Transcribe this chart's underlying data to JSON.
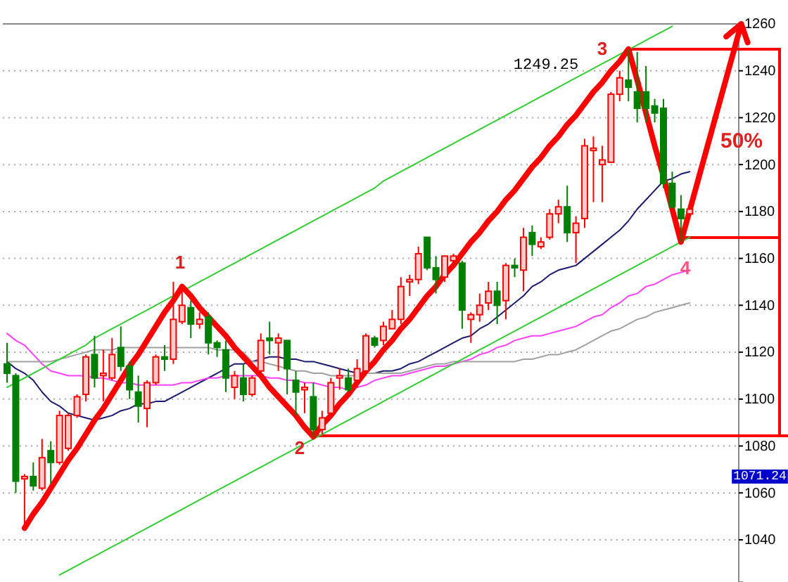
{
  "chart_data": {
    "type": "candlestick",
    "categories": [
      null,
      null,
      null,
      null,
      null,
      null,
      null,
      null,
      null,
      null,
      null,
      null,
      null,
      null,
      null,
      null,
      null,
      null,
      null,
      null,
      null,
      null,
      null,
      null,
      null,
      null,
      null,
      null,
      null,
      null,
      null,
      null,
      null,
      null,
      null,
      null,
      null,
      null,
      null,
      null,
      null,
      null,
      null,
      null,
      null,
      null,
      null,
      null,
      null,
      null,
      null,
      null,
      null,
      null,
      null,
      null,
      null,
      null,
      null,
      null,
      null,
      null,
      null,
      null,
      null,
      null,
      null,
      null,
      null,
      null,
      null,
      null,
      null,
      null,
      null,
      null,
      null,
      null,
      null
    ],
    "ohlc": [
      [
        1115,
        1124,
        1107,
        1111
      ],
      [
        1110,
        1111,
        1060,
        1065
      ],
      [
        1066,
        1068,
        1045,
        1067
      ],
      [
        1067,
        1073,
        1061,
        1063
      ],
      [
        1062,
        1083,
        1061,
        1075
      ],
      [
        1078,
        1082,
        1064,
        1073
      ],
      [
        1073,
        1095,
        1072,
        1093
      ],
      [
        1079,
        1094,
        1078,
        1093
      ],
      [
        1093,
        1102,
        1092,
        1101
      ],
      [
        1102,
        1119,
        1099,
        1118
      ],
      [
        1119,
        1127,
        1105,
        1109
      ],
      [
        1110,
        1121,
        1099,
        1111
      ],
      [
        1109,
        1126,
        1108,
        1119
      ],
      [
        1122,
        1131,
        1112,
        1114
      ],
      [
        1114,
        1116,
        1100,
        1104
      ],
      [
        1103,
        1110,
        1090,
        1097
      ],
      [
        1096,
        1108,
        1088,
        1107
      ],
      [
        1107,
        1119,
        1106,
        1118
      ],
      [
        1118,
        1123,
        1112,
        1117
      ],
      [
        1117,
        1150,
        1115,
        1134
      ],
      [
        1133,
        1148,
        1132,
        1140
      ],
      [
        1139,
        1142,
        1126,
        1132
      ],
      [
        1132,
        1137,
        1130,
        1134
      ],
      [
        1135,
        1137,
        1119,
        1124
      ],
      [
        1124,
        1125,
        1118,
        1122
      ],
      [
        1121,
        1125,
        1103,
        1109
      ],
      [
        1105,
        1112,
        1100,
        1110
      ],
      [
        1109,
        1115,
        1099,
        1102
      ],
      [
        1102,
        1110,
        1101,
        1109
      ],
      [
        1112,
        1128,
        1111,
        1125
      ],
      [
        1126,
        1133,
        1119,
        1125
      ],
      [
        1124,
        1128,
        1112,
        1126
      ],
      [
        1125,
        1125,
        1102,
        1113
      ],
      [
        1108,
        1112,
        1093,
        1103
      ],
      [
        1104,
        1107,
        1094,
        1105
      ],
      [
        1101,
        1107,
        1084,
        1087
      ],
      [
        1087,
        1095,
        1085,
        1092
      ],
      [
        1094,
        1109,
        1093,
        1107
      ],
      [
        1109,
        1113,
        1104,
        1110
      ],
      [
        1109,
        1113,
        1103,
        1104
      ],
      [
        1108,
        1117,
        1105,
        1113
      ],
      [
        1112,
        1128,
        1110,
        1127
      ],
      [
        1126,
        1127,
        1122,
        1123
      ],
      [
        1125,
        1133,
        1123,
        1131
      ],
      [
        1130,
        1138,
        1130,
        1134
      ],
      [
        1134,
        1152,
        1132,
        1148
      ],
      [
        1150,
        1153,
        1144,
        1151
      ],
      [
        1151,
        1165,
        1149,
        1162
      ],
      [
        1169,
        1169,
        1155,
        1156
      ],
      [
        1156,
        1161,
        1145,
        1151
      ],
      [
        1152,
        1161,
        1150,
        1161
      ],
      [
        1159,
        1162,
        1158,
        1161
      ],
      [
        1158,
        1159,
        1130,
        1138
      ],
      [
        1134,
        1137,
        1124,
        1136
      ],
      [
        1136,
        1145,
        1133,
        1140
      ],
      [
        1141,
        1150,
        1138,
        1146
      ],
      [
        1146,
        1150,
        1132,
        1140
      ],
      [
        1142,
        1158,
        1134,
        1157
      ],
      [
        1157,
        1160,
        1152,
        1156
      ],
      [
        1155,
        1173,
        1146,
        1169
      ],
      [
        1171,
        1174,
        1161,
        1166
      ],
      [
        1165,
        1169,
        1164,
        1167
      ],
      [
        1169,
        1181,
        1168,
        1179
      ],
      [
        1179,
        1185,
        1175,
        1182
      ],
      [
        1182,
        1191,
        1167,
        1171
      ],
      [
        1171,
        1178,
        1158,
        1175
      ],
      [
        1177,
        1211,
        1173,
        1208
      ],
      [
        1206,
        1212,
        1184,
        1207
      ],
      [
        1200,
        1208,
        1184,
        1202
      ],
      [
        1201,
        1231,
        1201,
        1230
      ],
      [
        1230,
        1240,
        1227,
        1237
      ],
      [
        1236,
        1249.25,
        1227,
        1233
      ],
      [
        1231,
        1248,
        1218,
        1224
      ],
      [
        1231,
        1242,
        1218,
        1224
      ],
      [
        1225,
        1228,
        1218,
        1222
      ],
      [
        1224,
        1228,
        1190,
        1192
      ],
      [
        1192,
        1197,
        1181,
        1182
      ],
      [
        1181,
        1187,
        1167,
        1177
      ],
      [
        1179,
        1182,
        1178,
        1181
      ]
    ],
    "series": [
      {
        "type": "line",
        "color": "#1a1a6e",
        "values": [
          1116,
          1113,
          1111,
          1108,
          1103,
          1099,
          1097,
          1094,
          1093,
          1092,
          1091,
          1092,
          1093,
          1095,
          1096,
          1098,
          1098,
          1099,
          1099,
          1101,
          1103,
          1105,
          1107,
          1109,
          1111,
          1113,
          1115,
          1115,
          1116,
          1117,
          1118,
          1118,
          1117,
          1117,
          1116,
          1116,
          1115,
          1114,
          1113,
          1112,
          1111,
          1111,
          1111,
          1112,
          1112,
          1113,
          1115,
          1116,
          1118,
          1120,
          1122,
          1124,
          1126,
          1127,
          1130,
          1132,
          1135,
          1138,
          1141,
          1144,
          1148,
          1150,
          1153,
          1155,
          1156,
          1157,
          1160,
          1163,
          1166,
          1169,
          1172,
          1176,
          1181,
          1185,
          1189,
          1193,
          1194,
          1196,
          1197
        ]
      },
      {
        "type": "line",
        "color": "#ff40ff",
        "values": [
          1128,
          1125,
          1123,
          1119,
          1115,
          1112,
          1111,
          1110,
          1110,
          1110,
          1109,
          1109,
          1108,
          1107,
          1107,
          1106,
          1106,
          1106,
          1106,
          1106,
          1107,
          1107,
          1108,
          1109,
          1109,
          1110,
          1110,
          1110,
          1110,
          1110,
          1109,
          1109,
          1108,
          1108,
          1107,
          1107,
          1106,
          1105,
          1105,
          1104,
          1105,
          1106,
          1108,
          1109,
          1110,
          1110,
          1111,
          1112,
          1113,
          1114,
          1114,
          1115,
          1116,
          1117,
          1119,
          1120,
          1122,
          1123,
          1125,
          1126,
          1127,
          1127,
          1128,
          1129,
          1130,
          1131,
          1133,
          1135,
          1136,
          1139,
          1141,
          1144,
          1145,
          1148,
          1149,
          1151,
          1153,
          1154,
          1155
        ]
      },
      {
        "type": "line",
        "color": "#a0a0a0",
        "values": [
          1116,
          1116,
          1116,
          1116,
          1116,
          1116,
          1117,
          1118,
          1119,
          1120,
          1121,
          1121,
          1121,
          1122,
          1122,
          1122,
          1122,
          1122,
          1122,
          1122,
          1122,
          1122,
          1122,
          1122,
          1121,
          1121,
          1121,
          1120,
          1116,
          1116,
          1115,
          1114,
          1113,
          1112,
          1112,
          1111,
          1111,
          1110,
          1110,
          1110,
          1110,
          1111,
          1111,
          1111,
          1111,
          1111,
          1112,
          1113,
          1114,
          1115,
          1115,
          1116,
          1116,
          1116,
          1116,
          1116,
          1116,
          1116,
          1116,
          1117,
          1117,
          1118,
          1119,
          1119,
          1120,
          1121,
          1123,
          1125,
          1127,
          1129,
          1130,
          1132,
          1134,
          1135,
          1137,
          1138,
          1139,
          1140,
          1141
        ]
      },
      {
        "type": "line",
        "color": "#33cc33",
        "values": [
          1105,
          1107,
          1109,
          1111,
          1113,
          1115,
          1117,
          1119,
          1121,
          1123,
          1126,
          1128,
          1130,
          1132,
          1134,
          1136,
          1138,
          1140,
          1142,
          1144,
          1146,
          1148,
          1150,
          1152,
          1154,
          1156,
          1158,
          1160,
          1162,
          1164,
          1166,
          1168,
          1170,
          1172,
          1174,
          1176,
          1178,
          1180,
          1182,
          1184,
          1186,
          1188,
          1190,
          1193,
          1195,
          1197,
          1199,
          1201,
          1203,
          1205,
          1207,
          1209,
          1211,
          1213,
          1215,
          1217,
          1219,
          1221,
          1223,
          1225,
          1227,
          1229,
          1231,
          1233,
          1235,
          1237,
          1239,
          1241,
          1243,
          1245,
          1247,
          1249,
          1251,
          1253,
          1255,
          1257,
          1259,
          null,
          null
        ]
      },
      {
        "type": "line",
        "color": "#33cc33",
        "values": [
          null,
          null,
          null,
          null,
          null,
          null,
          1025,
          1027,
          1029,
          1031,
          1033,
          1035,
          1037,
          1039,
          1041,
          1043,
          1045,
          1047,
          1049,
          1051,
          1053,
          1055,
          1057,
          1059,
          1061,
          1063,
          1065,
          1067,
          1069,
          1071,
          1073,
          1075,
          1077,
          1079,
          1081,
          1083,
          1085,
          1087,
          1089,
          1091,
          1093,
          1095,
          1097,
          1099,
          1101,
          1103,
          1105,
          1107,
          1109,
          1111,
          1113,
          1115,
          1117,
          1119,
          1121,
          1123,
          1125,
          1127,
          1129,
          1131,
          1133,
          1135,
          1137,
          1139,
          1141,
          1143,
          1145,
          1147,
          1149,
          1151,
          1153,
          1155,
          1157,
          1159,
          1161,
          1163,
          1165,
          1167,
          1169
        ]
      },
      {
        "type": "line",
        "color": "#ff0000",
        "values": [
          null,
          null,
          1045,
          1051,
          1056,
          1062,
          1068,
          1074,
          1079,
          1085,
          1091,
          1096,
          1102,
          1108,
          1114,
          1119,
          1125,
          1131,
          1137,
          1142,
          1148,
          1144,
          1139,
          1135,
          1131,
          1127,
          1122,
          1118,
          1114,
          1110,
          1105,
          1101,
          1097,
          1093,
          1088,
          1084,
          1089,
          1093,
          1098,
          1102,
          1107,
          1112,
          1116,
          1121,
          1125,
          1130,
          1134,
          1139,
          1144,
          1148,
          1153,
          1157,
          1162,
          1167,
          1171,
          1176,
          1180,
          1185,
          1189,
          1194,
          1199,
          1203,
          1208,
          1212,
          1217,
          1221,
          1226,
          1231,
          1235,
          1240,
          1244,
          1249.25,
          1236,
          1222,
          1208,
          1195,
          1181,
          1167,
          1180.5
        ]
      }
    ],
    "ylim": [
      1022,
      1260
    ],
    "yticks": [
      1040,
      1060,
      1080,
      1100,
      1120,
      1140,
      1160,
      1180,
      1200,
      1220,
      1240,
      1260
    ],
    "tick_labels": "y",
    "grid": "y",
    "annotations": [
      "1",
      "2",
      "3",
      "4",
      "50%",
      "1249.25",
      "1071.24"
    ]
  }
}
